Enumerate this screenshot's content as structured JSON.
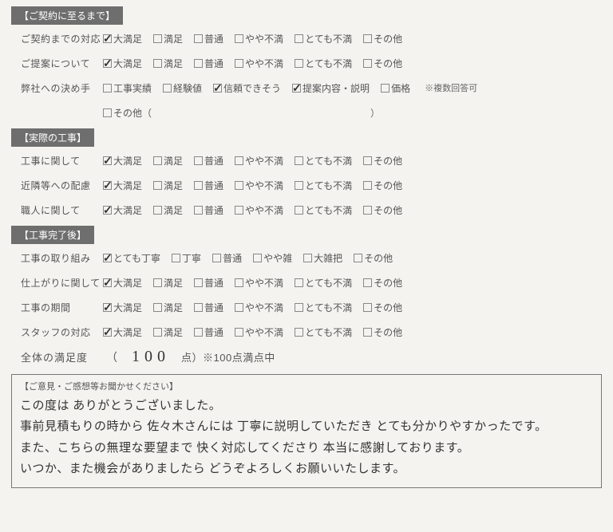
{
  "sections": [
    {
      "title": "【ご契約に至るまで】",
      "rows": [
        {
          "label": "ご契約までの対応",
          "options": [
            {
              "text": "大満足",
              "checked": true
            },
            {
              "text": "満足",
              "checked": false
            },
            {
              "text": "普通",
              "checked": false
            },
            {
              "text": "やや不満",
              "checked": false
            },
            {
              "text": "とても不満",
              "checked": false
            },
            {
              "text": "その他",
              "checked": false
            }
          ]
        },
        {
          "label": "ご提案について",
          "options": [
            {
              "text": "大満足",
              "checked": true
            },
            {
              "text": "満足",
              "checked": false
            },
            {
              "text": "普通",
              "checked": false
            },
            {
              "text": "やや不満",
              "checked": false
            },
            {
              "text": "とても不満",
              "checked": false
            },
            {
              "text": "その他",
              "checked": false
            }
          ]
        },
        {
          "label": "弊社への決め手",
          "options": [
            {
              "text": "工事実績",
              "checked": false
            },
            {
              "text": "経験値",
              "checked": false
            },
            {
              "text": "信頼できそう",
              "checked": true
            },
            {
              "text": "提案内容・説明",
              "checked": true
            },
            {
              "text": "価格",
              "checked": false
            }
          ],
          "note": "※複数回答可",
          "extra_row": {
            "options": [
              {
                "text": "その他（",
                "checked": false
              }
            ],
            "trail": "）"
          }
        }
      ]
    },
    {
      "title": "【実際の工事】",
      "rows": [
        {
          "label": "工事に関して",
          "options": [
            {
              "text": "大満足",
              "checked": true
            },
            {
              "text": "満足",
              "checked": false
            },
            {
              "text": "普通",
              "checked": false
            },
            {
              "text": "やや不満",
              "checked": false
            },
            {
              "text": "とても不満",
              "checked": false
            },
            {
              "text": "その他",
              "checked": false
            }
          ]
        },
        {
          "label": "近隣等への配慮",
          "options": [
            {
              "text": "大満足",
              "checked": true
            },
            {
              "text": "満足",
              "checked": false
            },
            {
              "text": "普通",
              "checked": false
            },
            {
              "text": "やや不満",
              "checked": false
            },
            {
              "text": "とても不満",
              "checked": false
            },
            {
              "text": "その他",
              "checked": false
            }
          ]
        },
        {
          "label": "職人に関して",
          "options": [
            {
              "text": "大満足",
              "checked": true
            },
            {
              "text": "満足",
              "checked": false
            },
            {
              "text": "普通",
              "checked": false
            },
            {
              "text": "やや不満",
              "checked": false
            },
            {
              "text": "とても不満",
              "checked": false
            },
            {
              "text": "その他",
              "checked": false
            }
          ]
        }
      ]
    },
    {
      "title": "【工事完了後】",
      "rows": [
        {
          "label": "工事の取り組み",
          "options": [
            {
              "text": "とても丁寧",
              "checked": true
            },
            {
              "text": "丁寧",
              "checked": false
            },
            {
              "text": "普通",
              "checked": false
            },
            {
              "text": "やや雑",
              "checked": false
            },
            {
              "text": "大雑把",
              "checked": false
            },
            {
              "text": "その他",
              "checked": false
            }
          ]
        },
        {
          "label": "仕上がりに関して",
          "options": [
            {
              "text": "大満足",
              "checked": true
            },
            {
              "text": "満足",
              "checked": false
            },
            {
              "text": "普通",
              "checked": false
            },
            {
              "text": "やや不満",
              "checked": false
            },
            {
              "text": "とても不満",
              "checked": false
            },
            {
              "text": "その他",
              "checked": false
            }
          ]
        },
        {
          "label": "工事の期間",
          "options": [
            {
              "text": "大満足",
              "checked": true
            },
            {
              "text": "満足",
              "checked": false
            },
            {
              "text": "普通",
              "checked": false
            },
            {
              "text": "やや不満",
              "checked": false
            },
            {
              "text": "とても不満",
              "checked": false
            },
            {
              "text": "その他",
              "checked": false
            }
          ]
        },
        {
          "label": "スタッフの対応",
          "options": [
            {
              "text": "大満足",
              "checked": true
            },
            {
              "text": "満足",
              "checked": false
            },
            {
              "text": "普通",
              "checked": false
            },
            {
              "text": "やや不満",
              "checked": false
            },
            {
              "text": "とても不満",
              "checked": false
            },
            {
              "text": "その他",
              "checked": false
            }
          ]
        }
      ]
    }
  ],
  "score": {
    "label": "全体の満足度",
    "value": "100",
    "unit": "点）※100点満点中",
    "open": "（"
  },
  "comment": {
    "title": "【ご意見・ご感想等お聞かせください】",
    "body": "この度は ありがとうございました。\n事前見積もりの時から 佐々木さんには 丁寧に説明していただき とても分かりやすかったです。\nまた、こちらの無理な要望まで 快く対応してくださり 本当に感謝しております。\nいつか、また機会がありましたら  どうぞよろしくお願いいたします。"
  }
}
